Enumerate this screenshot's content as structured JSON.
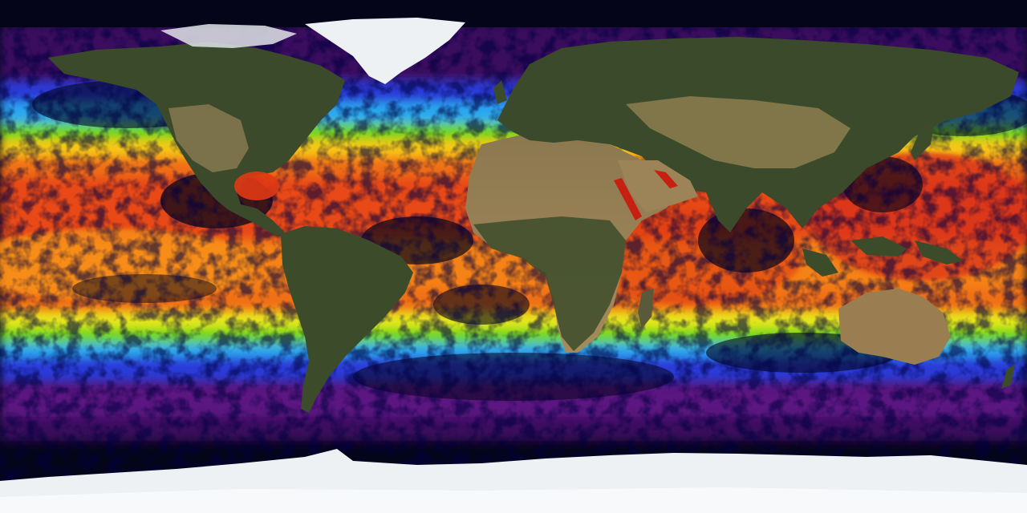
{
  "map": {
    "projection": "equirectangular",
    "colors": {
      "ocean_background": "#05051a",
      "ice": "#eef1f4",
      "land_vegetation": "#3c4a2c",
      "land_desert": "#9c8458",
      "sst_palette": [
        "#3a0a5e",
        "#7a1a9a",
        "#2a3ad8",
        "#2aa8f0",
        "#2ad0a0",
        "#6ad61a",
        "#e8e81a",
        "#f8a818",
        "#f06018",
        "#c82010"
      ]
    },
    "regions": [
      {
        "name": "greenland",
        "kind": "ice"
      },
      {
        "name": "antarctica",
        "kind": "ice"
      },
      {
        "name": "north-america",
        "kind": "land"
      },
      {
        "name": "south-america",
        "kind": "land"
      },
      {
        "name": "africa",
        "kind": "land"
      },
      {
        "name": "eurasia",
        "kind": "land"
      },
      {
        "name": "australia",
        "kind": "land"
      }
    ]
  }
}
